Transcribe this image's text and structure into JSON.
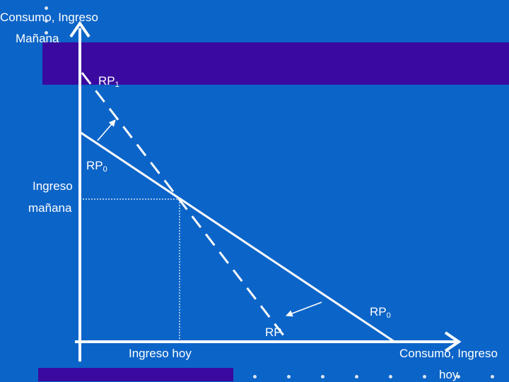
{
  "labels": {
    "y_axis_line1": "Consumo, Ingreso",
    "y_axis_line2": "Mañana",
    "x_axis_line1": "Consumo, Ingreso",
    "x_axis_line2": "hoy",
    "income_tomorrow_line1": "Ingreso",
    "income_tomorrow_line2": "mañana",
    "income_today": "Ingreso hoy",
    "rp1_main": "RP",
    "rp1_sub": "1",
    "rp0_left_main": "RP",
    "rp0_left_sub": "0",
    "rp0_right_main": "RP",
    "rp0_right_sub": "0",
    "rp_bottom": "RP"
  },
  "colors": {
    "background": "#0b64c8",
    "band": "#3a0aa0",
    "lines": "#ffffff"
  }
}
